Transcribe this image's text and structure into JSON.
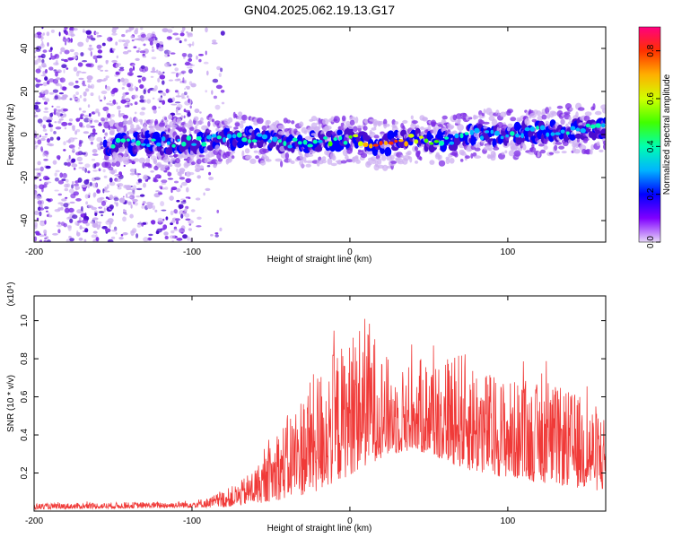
{
  "title": "GN04.2025.062.19.13.G17",
  "colors": {
    "snr_line": "#f03a38",
    "scatter_faint": "#cdb0f2",
    "scatter_mid": "#7d2ce6",
    "scatter_dark": "#4a0ccf",
    "axis": "#000000",
    "background": "#ffffff"
  },
  "chart_data": [
    {
      "type": "heatmap",
      "name": "spectrogram",
      "xlabel": "Height of straight line (km)",
      "ylabel": "Frequency (Hz)",
      "xlim": [
        -200,
        162
      ],
      "ylim": [
        -50,
        50
      ],
      "xticks": [
        -200,
        -100,
        0,
        100
      ],
      "yticks": [
        -40,
        -20,
        0,
        20,
        40
      ],
      "grid": false,
      "colorbar": {
        "label": "Normalized spectral amplitude",
        "range": [
          0.0,
          0.9
        ],
        "ticks": [
          "0.0",
          "0.2",
          "0.4",
          "0.6",
          "0.8"
        ],
        "colormap": [
          "#e8d8f8",
          "#8000ff",
          "#0000ff",
          "#00b4ff",
          "#00ffb0",
          "#40ff00",
          "#d0ff00",
          "#ffb000",
          "#ff3000",
          "#ff0080"
        ]
      },
      "ridge": {
        "start_km": -155,
        "center_hz": [
          {
            "x": -155,
            "y": -4
          },
          {
            "x": -120,
            "y": -4
          },
          {
            "x": -90,
            "y": -3
          },
          {
            "x": -70,
            "y": -1
          },
          {
            "x": -40,
            "y": -4
          },
          {
            "x": -10,
            "y": -3
          },
          {
            "x": 0,
            "y": -2
          },
          {
            "x": 20,
            "y": -5
          },
          {
            "x": 40,
            "y": -2
          },
          {
            "x": 60,
            "y": -3
          },
          {
            "x": 80,
            "y": 0
          },
          {
            "x": 100,
            "y": 0
          },
          {
            "x": 130,
            "y": 2
          },
          {
            "x": 162,
            "y": 3
          }
        ],
        "peak_km": 25
      },
      "scatter_region": {
        "x_range": [
          -200,
          -80
        ],
        "dense_until_km": -100
      }
    },
    {
      "type": "line",
      "name": "snr",
      "xlabel": "Height of straight line (km)",
      "ylabel": "SNR (10 * v/v)",
      "yscale_label": "(x10⁴)",
      "xlim": [
        -200,
        162
      ],
      "ylim": [
        0,
        1.13
      ],
      "xticks": [
        -200,
        -100,
        0,
        100
      ],
      "yticks": [
        0.2,
        0.4,
        0.6,
        0.8,
        1.0
      ],
      "ytick_labels": [
        "0.2",
        "0.4",
        "0.6",
        "0.8",
        "1.0"
      ],
      "grid": false,
      "envelope": [
        {
          "x": -200,
          "y": 0.04
        },
        {
          "x": -110,
          "y": 0.05
        },
        {
          "x": -90,
          "y": 0.07
        },
        {
          "x": -70,
          "y": 0.15
        },
        {
          "x": -55,
          "y": 0.28
        },
        {
          "x": -40,
          "y": 0.5
        },
        {
          "x": -25,
          "y": 0.7
        },
        {
          "x": -10,
          "y": 0.85
        },
        {
          "x": 0,
          "y": 0.9
        },
        {
          "x": 10,
          "y": 1.05
        },
        {
          "x": 20,
          "y": 0.85
        },
        {
          "x": 30,
          "y": 0.75
        },
        {
          "x": 50,
          "y": 0.82
        },
        {
          "x": 70,
          "y": 0.85
        },
        {
          "x": 90,
          "y": 0.72
        },
        {
          "x": 110,
          "y": 0.68
        },
        {
          "x": 130,
          "y": 0.66
        },
        {
          "x": 150,
          "y": 0.6
        },
        {
          "x": 162,
          "y": 0.52
        }
      ],
      "baseline": [
        {
          "x": -200,
          "y": 0.01
        },
        {
          "x": -80,
          "y": 0.02
        },
        {
          "x": -50,
          "y": 0.05
        },
        {
          "x": -20,
          "y": 0.1
        },
        {
          "x": 20,
          "y": 0.28
        },
        {
          "x": 40,
          "y": 0.32
        },
        {
          "x": 80,
          "y": 0.2
        },
        {
          "x": 162,
          "y": 0.1
        }
      ]
    }
  ]
}
